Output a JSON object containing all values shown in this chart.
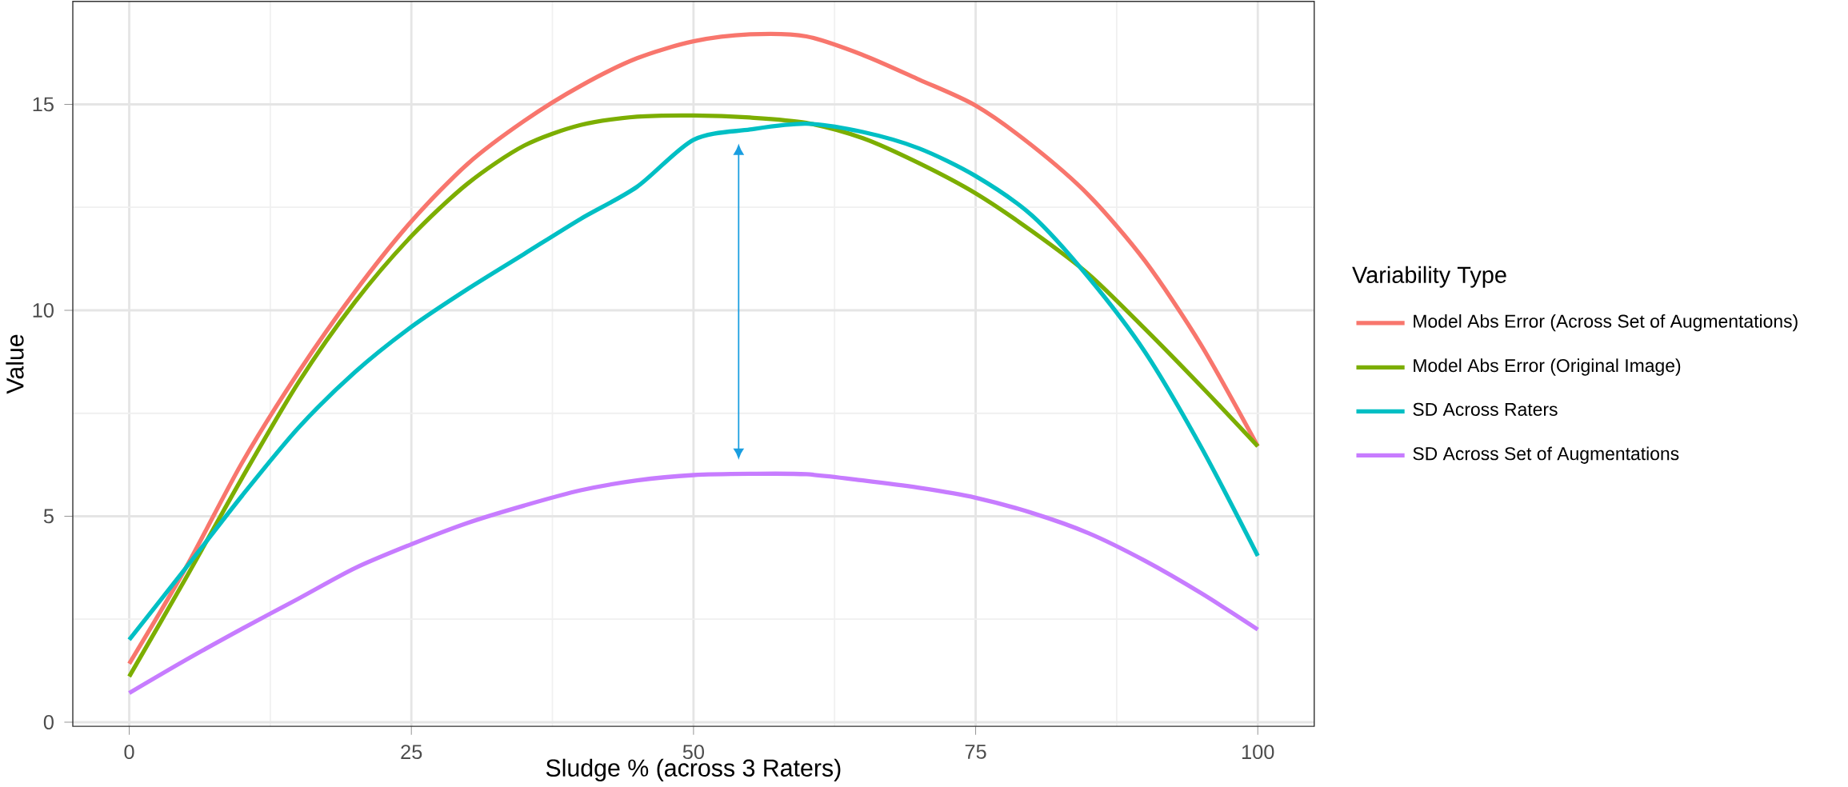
{
  "chart_data": {
    "type": "line",
    "xlabel": "Sludge % (across 3 Raters)",
    "ylabel": "Value",
    "legend_title": "Variability Type",
    "x": [
      0,
      5,
      10,
      15,
      20,
      25,
      30,
      35,
      40,
      45,
      50,
      55,
      60,
      65,
      70,
      75,
      80,
      85,
      90,
      95,
      100
    ],
    "series": [
      {
        "name": "Model Abs Error (Across Set of Augmentations)",
        "color": "#f8766d",
        "values": [
          1.42,
          3.74,
          6.3,
          8.5,
          10.45,
          12.16,
          13.56,
          14.6,
          15.45,
          16.12,
          16.53,
          16.7,
          16.65,
          16.2,
          15.6,
          14.97,
          14.0,
          12.8,
          11.2,
          9.15,
          6.7
        ]
      },
      {
        "name": "Model Abs Error (Original Image)",
        "color": "#7cae00",
        "values": [
          1.11,
          3.49,
          5.93,
          8.25,
          10.2,
          11.8,
          13.08,
          14.0,
          14.5,
          14.7,
          14.73,
          14.68,
          14.55,
          14.18,
          13.57,
          12.84,
          11.92,
          10.88,
          9.55,
          8.15,
          6.7
        ]
      },
      {
        "name": "SD Across Raters",
        "color": "#00bfc4",
        "values": [
          2.0,
          3.74,
          5.5,
          7.15,
          8.5,
          9.6,
          10.52,
          11.37,
          12.22,
          13.0,
          14.14,
          14.39,
          14.53,
          14.33,
          13.93,
          13.26,
          12.3,
          10.8,
          8.99,
          6.67,
          4.04
        ]
      },
      {
        "name": "SD Across Set of Augmentations",
        "color": "#c77cff",
        "values": [
          0.71,
          1.51,
          2.27,
          3.0,
          3.74,
          4.32,
          4.84,
          5.26,
          5.63,
          5.87,
          6.0,
          6.03,
          6.02,
          5.87,
          5.69,
          5.45,
          5.08,
          4.59,
          3.92,
          3.13,
          2.25
        ]
      }
    ],
    "xlim": [
      -5,
      105
    ],
    "ylim": [
      -0.1,
      17.5
    ],
    "xticks": [
      0,
      25,
      50,
      75,
      100
    ],
    "yticks": [
      0,
      5,
      10,
      15
    ],
    "grid": true,
    "legend": "right",
    "marker": "none",
    "line_style": "solid"
  }
}
